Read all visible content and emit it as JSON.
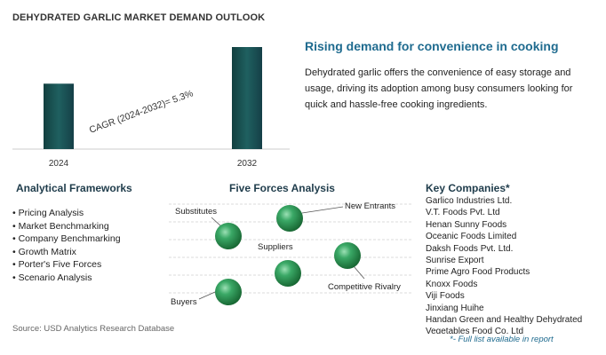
{
  "report_title": "DEHYDRATED GARLIC MARKET DEMAND OUTLOOK",
  "chart_data": {
    "type": "bar",
    "categories": [
      "2024",
      "2032"
    ],
    "values": [
      1.0,
      1.56
    ],
    "value_note": "relative bar heights; no y-axis values shown",
    "title": "",
    "xlabel": "",
    "ylabel": "",
    "annotation": "CAGR (2024-2032)=   5.3%",
    "bar_color": "#1d5a5a",
    "grid": false
  },
  "insight": {
    "headline": "Rising demand for convenience in cooking",
    "description": "Dehydrated garlic offers the convenience of easy storage and usage, driving its adoption among busy consumers looking for quick and hassle-free cooking ingredients."
  },
  "frameworks": {
    "title": "Analytical Frameworks",
    "items": [
      "Pricing Analysis",
      "Market Benchmarking",
      "Company Benchmarking",
      "Growth Matrix",
      "Porter's Five Forces",
      "Scenario Analysis"
    ]
  },
  "five_forces": {
    "title": "Five Forces Analysis",
    "labels": {
      "substitutes": "Substitutes",
      "new_entrants": "New Entrants",
      "suppliers": "Suppliers",
      "competitive_rivalry": "Competitive Rivalry",
      "buyers": "Buyers"
    },
    "sphere_color": "#2e9a5a"
  },
  "companies": {
    "title": "Key Companies*",
    "items": [
      "Garlico Industries Ltd.",
      "V.T. Foods Pvt. Ltd",
      "Henan Sunny Foods",
      "Oceanic Foods Limited",
      "Daksh Foods Pvt. Ltd.",
      "Sunrise Export",
      "Prime Agro Food Products",
      "Knoxx Foods",
      "Viji Foods",
      "Jinxiang Huihe",
      "Handan Green and Healthy Dehydrated Vegetables Food Co. Ltd"
    ],
    "footnote": "*- Full list available in report"
  },
  "source": "Source: USD Analytics Research Database"
}
